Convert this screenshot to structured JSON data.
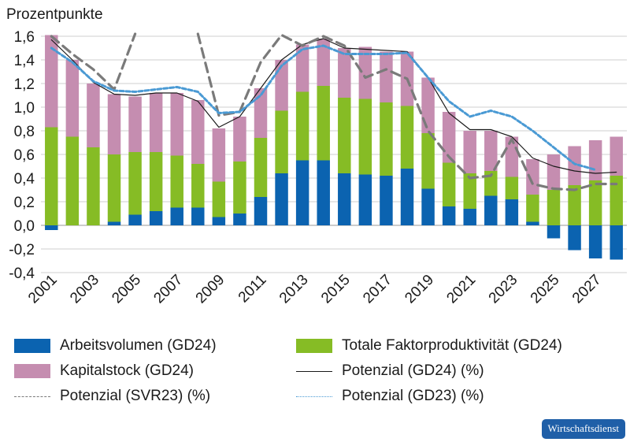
{
  "chart_data": {
    "type": "bar",
    "title": "Prozentpunkte",
    "ylim": [
      -0.4,
      1.6
    ],
    "yticks": [
      "1,6",
      "1,4",
      "1,2",
      "1,0",
      "0,8",
      "0,6",
      "0,4",
      "0,2",
      "0,0",
      "-0,2",
      "-0,4"
    ],
    "ytick_values": [
      1.6,
      1.4,
      1.2,
      1.0,
      0.8,
      0.6,
      0.4,
      0.2,
      0.0,
      -0.2,
      -0.4
    ],
    "x": [
      2001,
      2002,
      2003,
      2004,
      2005,
      2006,
      2007,
      2008,
      2009,
      2010,
      2011,
      2012,
      2013,
      2014,
      2015,
      2016,
      2017,
      2018,
      2019,
      2020,
      2021,
      2022,
      2023,
      2024,
      2025,
      2026,
      2027,
      2028
    ],
    "xtick_labels": [
      "2001",
      "2003",
      "2005",
      "2007",
      "2009",
      "2011",
      "2013",
      "2015",
      "2017",
      "2019",
      "2021",
      "2023",
      "2025",
      "2027"
    ],
    "grid": true,
    "legend_position": "bottom",
    "series": [
      {
        "name": "Arbeitsvolumen (GD24)",
        "kind": "bar",
        "color": "#0b63b0",
        "values": [
          -0.04,
          0,
          0,
          0.03,
          0.09,
          0.12,
          0.15,
          0.15,
          0.07,
          0.1,
          0.24,
          0.44,
          0.55,
          0.55,
          0.44,
          0.43,
          0.42,
          0.48,
          0.31,
          0.16,
          0.14,
          0.25,
          0.22,
          0.03,
          -0.11,
          -0.21,
          -0.28,
          -0.29
        ]
      },
      {
        "name": "Totale Faktorproduktivität (GD24)",
        "kind": "bar",
        "color": "#86bc25",
        "values": [
          0.83,
          0.75,
          0.66,
          0.57,
          0.53,
          0.5,
          0.44,
          0.37,
          0.3,
          0.44,
          0.5,
          0.53,
          0.58,
          0.63,
          0.64,
          0.64,
          0.62,
          0.53,
          0.47,
          0.37,
          0.3,
          0.21,
          0.19,
          0.23,
          0.3,
          0.34,
          0.38,
          0.42
        ]
      },
      {
        "name": "Kapitalstock (GD24)",
        "kind": "bar",
        "color": "#c58db0",
        "values": [
          0.78,
          0.65,
          0.54,
          0.51,
          0.47,
          0.5,
          0.53,
          0.54,
          0.45,
          0.38,
          0.42,
          0.43,
          0.4,
          0.4,
          0.42,
          0.44,
          0.43,
          0.46,
          0.47,
          0.43,
          0.36,
          0.34,
          0.34,
          0.3,
          0.3,
          0.33,
          0.34,
          0.33
        ]
      },
      {
        "name": "Potenzial (GD24) (%)",
        "kind": "line",
        "color": "#1a1a1a",
        "style": "solid",
        "values": [
          1.57,
          1.4,
          1.21,
          1.11,
          1.1,
          1.12,
          1.12,
          1.05,
          0.83,
          0.92,
          1.16,
          1.4,
          1.53,
          1.58,
          1.5,
          1.49,
          1.48,
          1.47,
          1.25,
          0.95,
          0.81,
          0.81,
          0.75,
          0.57,
          0.5,
          0.46,
          0.44,
          0.45
        ]
      },
      {
        "name": "Potenzial (SVR23) (%)",
        "kind": "line",
        "color": "#7a7a7a",
        "style": "dashed",
        "values": [
          1.6,
          1.45,
          1.32,
          1.15,
          1.62,
          null,
          null,
          1.62,
          0.93,
          0.96,
          1.38,
          1.61,
          1.52,
          1.6,
          1.52,
          1.25,
          1.32,
          1.24,
          0.8,
          0.58,
          0.4,
          0.42,
          0.73,
          0.35,
          0.31,
          0.3,
          0.35,
          0.35
        ]
      },
      {
        "name": "Potenzial (GD23) (%)",
        "kind": "line",
        "color": "#4a9ad4",
        "style": "dotted",
        "values": [
          1.5,
          1.38,
          1.22,
          1.14,
          1.13,
          1.15,
          1.17,
          1.13,
          0.95,
          0.96,
          1.1,
          1.35,
          1.49,
          1.52,
          1.45,
          1.45,
          1.45,
          1.46,
          1.25,
          1.05,
          0.92,
          0.97,
          0.92,
          0.8,
          0.66,
          0.52,
          0.47,
          null
        ]
      }
    ]
  },
  "legend": {
    "arbeitsvolumen": "Arbeitsvolumen (GD24)",
    "tfp": "Totale Faktorproduktivität (GD24)",
    "kapitalstock": "Kapitalstock (GD24)",
    "potenzial_gd24": "Potenzial (GD24) (%)",
    "potenzial_svr23": "Potenzial (SVR23) (%)",
    "potenzial_gd23": "Potenzial (GD23) (%)"
  },
  "badge": "Wirtschaftsdienst"
}
